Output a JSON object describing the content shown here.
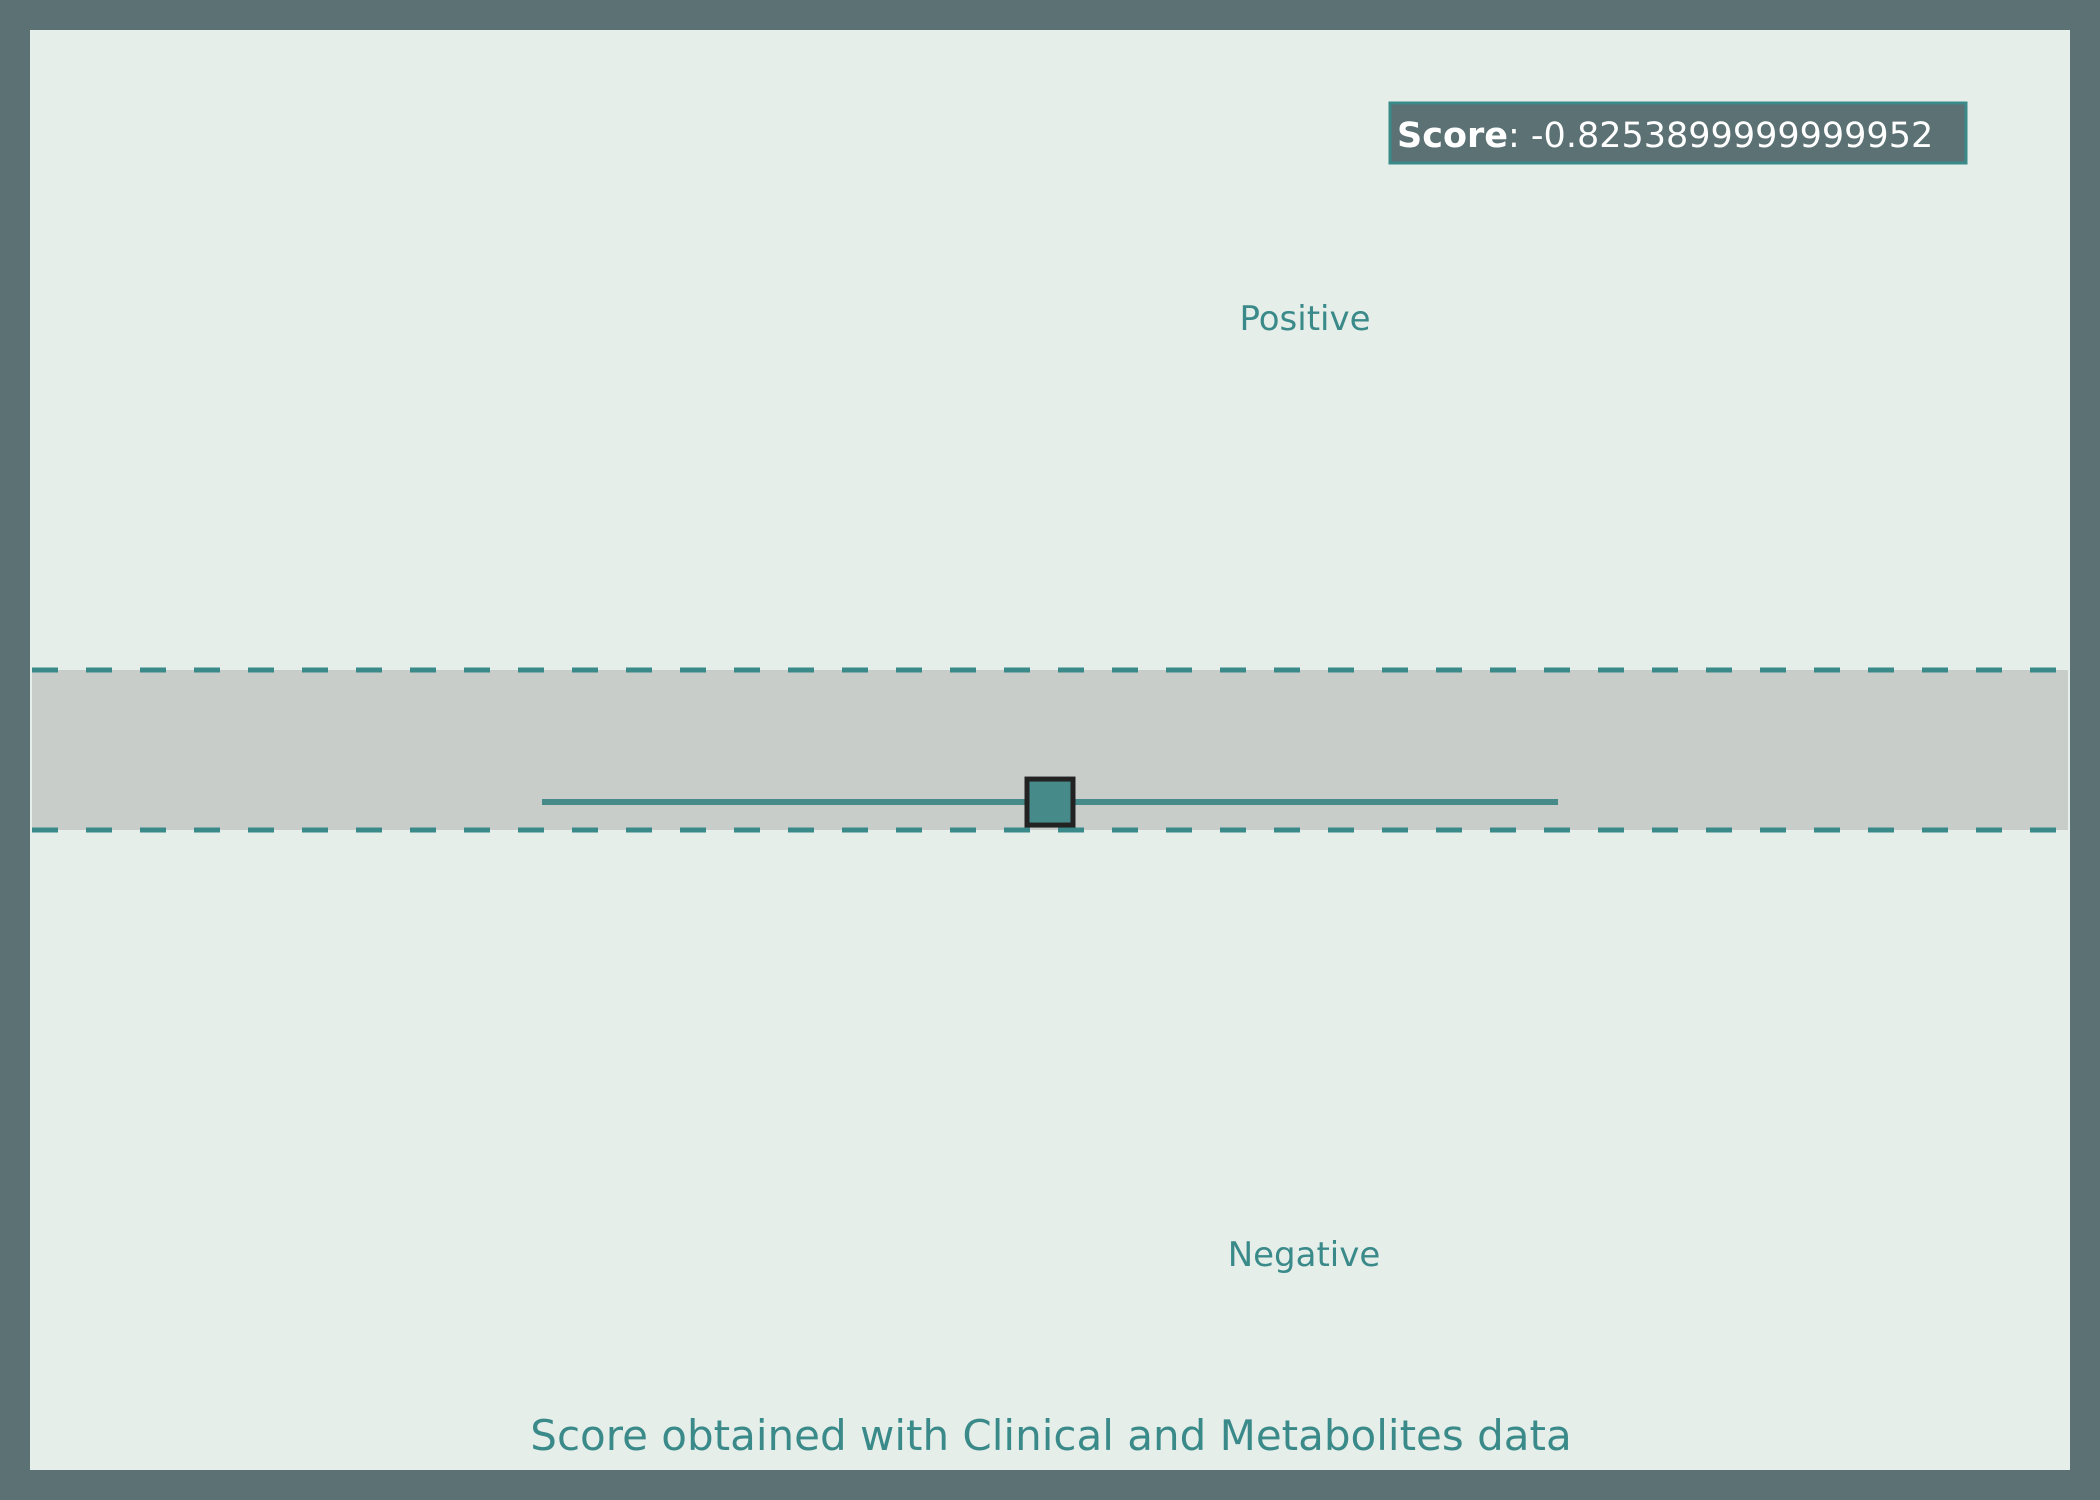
{
  "chart_data": {
    "type": "scatter",
    "title": "",
    "xlabel": "Score obtained with Clinical and Metabolites data",
    "ylabel": "",
    "score_box": {
      "label": "Score",
      "separator": ": ",
      "value": "-0.8253899999999952"
    },
    "region_labels": {
      "positive": "Positive",
      "negative": "Negative"
    },
    "point": {
      "y": -0.82539,
      "error_low": -1.5,
      "error_high": 0.5
    },
    "threshold_band": {
      "upper": 0.0,
      "lower": -1.0
    },
    "ylim": [
      -5,
      4
    ],
    "grid": false
  },
  "colors": {
    "frame": "#5b7173",
    "plot_background": "#e6eeea",
    "band": "#c8cdca",
    "accent": "#3a8a8a",
    "marker_fill": "#468a8a",
    "marker_edge": "#222222",
    "score_box_bg": "#5b7173",
    "score_box_border": "#3a8a8a"
  }
}
